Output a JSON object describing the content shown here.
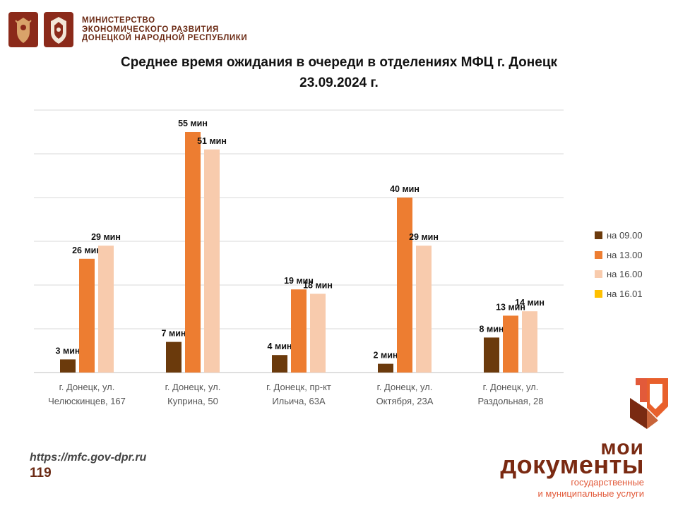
{
  "header": {
    "ministry_lines": [
      "МИНИСТЕРСТВО",
      "ЭКОНОМИЧЕСКОГО РАЗВИТИЯ",
      "ДОНЕЦКОЙ НАРОДНОЙ РЕСПУБЛИКИ"
    ],
    "emblem_icons": [
      "russia-coat-of-arms-icon",
      "dpr-coat-of-arms-icon"
    ]
  },
  "title_line1": "Среднее время ожидания в очереди в отделениях МФЦ г. Донецк",
  "title_line2": "23.09.2024 г.",
  "chart_data": {
    "type": "bar",
    "categories": [
      [
        "г. Донецк, ул.",
        "Челюскинцев, 167"
      ],
      [
        "г. Донецк, ул.",
        "Куприна, 50"
      ],
      [
        "г. Донецк, пр-кт",
        "Ильича, 63А"
      ],
      [
        "г. Донецк, ул.",
        "Октября, 23А"
      ],
      [
        "г. Донецк, ул.",
        "Раздольная, 28"
      ]
    ],
    "series": [
      {
        "name": "на 09.00",
        "color": "#6b3a0c",
        "values": [
          3,
          7,
          4,
          2,
          8
        ],
        "labels": [
          "3 мин",
          "7 мин",
          "4 мин",
          "2 мин",
          "8 мин"
        ]
      },
      {
        "name": "на 13.00",
        "color": "#ed7d31",
        "values": [
          26,
          55,
          19,
          40,
          13
        ],
        "labels": [
          "26 мин",
          "55 мин",
          "19 мин",
          "40 мин",
          "13 мин"
        ]
      },
      {
        "name": "на 16.00",
        "color": "#f8cbad",
        "values": [
          29,
          51,
          18,
          29,
          14
        ],
        "labels": [
          "29 мин",
          "51 мин",
          "18 мин",
          "29 мин",
          "14 мин"
        ]
      },
      {
        "name": "на 16.01",
        "color": "#ffc000",
        "values": [
          null,
          null,
          null,
          null,
          null
        ],
        "labels": []
      }
    ],
    "ylim": [
      0,
      60
    ],
    "grid": true,
    "legend_position": "right"
  },
  "footer": {
    "url": "https://mfc.gov-dpr.ru",
    "code": "119"
  },
  "brand": {
    "line1": "мои",
    "line2": "документы",
    "line3": "государственные",
    "line4": "и муниципальные услуги"
  }
}
